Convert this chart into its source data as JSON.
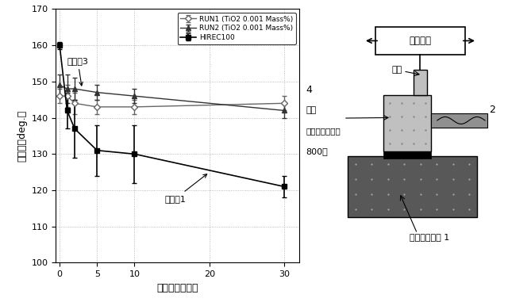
{
  "run1": {
    "x": [
      0,
      1,
      2,
      5,
      10,
      30
    ],
    "y": [
      146,
      146,
      144,
      143,
      143,
      144
    ],
    "yerr": [
      2,
      3,
      3,
      2,
      2,
      2
    ],
    "label": "RUN1 (TiO2 0.001 Mass%)",
    "color": "#666666",
    "marker": "D",
    "linestyle": "-"
  },
  "run2": {
    "x": [
      0,
      1,
      2,
      5,
      10,
      30
    ],
    "y": [
      149,
      148,
      148,
      147,
      146,
      142
    ],
    "yerr": [
      3,
      4,
      3,
      2,
      2,
      2
    ],
    "label": "RUN2 (TiO2 0.001 Mass%)",
    "color": "#333333",
    "marker": "^",
    "linestyle": "-"
  },
  "hirec": {
    "x": [
      0,
      1,
      2,
      5,
      10,
      30
    ],
    "y": [
      160,
      142,
      137,
      131,
      130,
      121
    ],
    "yerr": [
      1,
      5,
      8,
      7,
      8,
      3
    ],
    "label": "HIREC100",
    "color": "#000000",
    "marker": "s",
    "linestyle": "-"
  },
  "xlabel": "往復運動の回数",
  "ylabel": "接触角［deg.］",
  "ylim": [
    100,
    170
  ],
  "xlim": [
    -0.5,
    32
  ],
  "xticks": [
    0,
    5,
    10,
    20,
    30
  ],
  "yticks": [
    100,
    110,
    120,
    130,
    140,
    150,
    160,
    170
  ],
  "annotation1_text": "実施例3",
  "annotation2_text": "比較例1",
  "diag_label_ohufuku": "往復運動",
  "diag_label_kajuu": "荷重",
  "diag_label_sand": "サンドペーパー",
  "diag_label_800": "800番",
  "diag_label_sample": "評価サンプル 1",
  "diag_num_4": "4",
  "diag_num_2": "2"
}
